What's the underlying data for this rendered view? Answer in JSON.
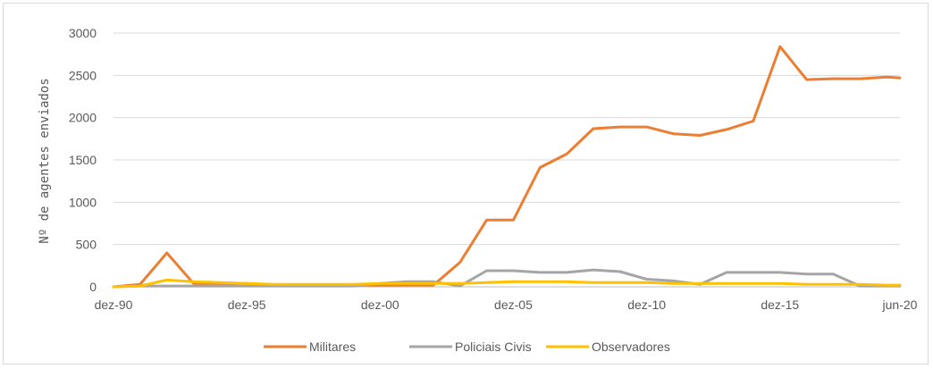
{
  "chart_data": {
    "type": "line",
    "ylabel": "Nº de agentes enviados",
    "x_tick_labels": [
      "dez-90",
      "dez-95",
      "dez-00",
      "dez-05",
      "dez-10",
      "dez-15",
      "jun-20"
    ],
    "y_ticks": [
      0,
      500,
      1000,
      1500,
      2000,
      2500,
      3000
    ],
    "ylim": [
      0,
      3000
    ],
    "xlim": [
      1990.917,
      2020.417
    ],
    "grid": "horizontal",
    "legend_position": "bottom",
    "x": [
      1990.917,
      1991.917,
      1992.917,
      1993.917,
      1994.917,
      1995.917,
      1996.917,
      1997.917,
      1998.917,
      1999.917,
      2000.917,
      2001.917,
      2002.917,
      2003.917,
      2004.917,
      2005.917,
      2006.917,
      2007.917,
      2008.917,
      2009.917,
      2010.917,
      2011.917,
      2012.917,
      2013.917,
      2014.917,
      2015.917,
      2016.917,
      2017.917,
      2018.917,
      2019.917,
      2020.417
    ],
    "series": [
      {
        "name": "Militares",
        "color": "#ED7D31",
        "values": [
          0,
          30,
          400,
          40,
          40,
          40,
          20,
          20,
          20,
          20,
          20,
          20,
          20,
          290,
          790,
          790,
          1410,
          1570,
          1870,
          1890,
          1890,
          1810,
          1790,
          1860,
          1960,
          2840,
          2450,
          2460,
          2460,
          2480,
          2470
        ]
      },
      {
        "name": "Policiais Civis",
        "color": "#A5A5A5",
        "values": [
          0,
          10,
          10,
          10,
          10,
          10,
          10,
          10,
          10,
          10,
          40,
          60,
          60,
          10,
          190,
          190,
          170,
          170,
          200,
          180,
          90,
          70,
          30,
          170,
          170,
          170,
          150,
          150,
          10,
          10,
          10
        ]
      },
      {
        "name": "Observadores",
        "color": "#FFC000",
        "values": [
          0,
          10,
          80,
          60,
          50,
          40,
          30,
          30,
          30,
          30,
          40,
          40,
          40,
          40,
          50,
          60,
          60,
          60,
          50,
          50,
          50,
          40,
          40,
          40,
          40,
          40,
          30,
          30,
          30,
          20,
          20
        ]
      }
    ]
  }
}
